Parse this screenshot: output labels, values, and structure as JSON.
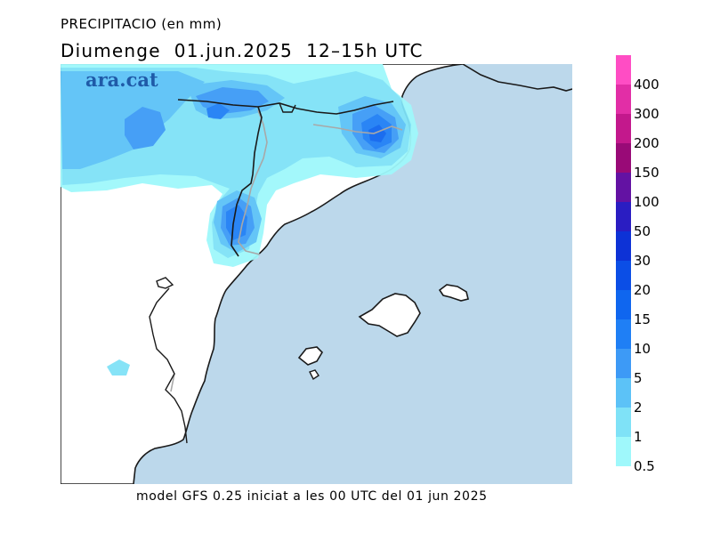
{
  "header": {
    "variable": "PRECIPITACIO (en mm)",
    "period": "Diumenge  01.jun.2025  12–15h UTC"
  },
  "brand": {
    "logo_text": "ara.cat"
  },
  "footer": {
    "model_info": "model GFS 0.25 iniciat a les 00 UTC del 01 jun 2025"
  },
  "colors": {
    "sea": "#bcd8eb",
    "land": "#ffffff",
    "coast": "#1a1a1a",
    "border": "#a8a8a8"
  },
  "legend": {
    "unit": "mm",
    "classes": [
      {
        "label": "400",
        "color": "#ff4dc4"
      },
      {
        "label": "300",
        "color": "#e22ea6"
      },
      {
        "label": "200",
        "color": "#c3188c"
      },
      {
        "label": "150",
        "color": "#990a77"
      },
      {
        "label": "100",
        "color": "#6312a3"
      },
      {
        "label": "50",
        "color": "#2a1dc2"
      },
      {
        "label": "30",
        "color": "#0d32d6"
      },
      {
        "label": "20",
        "color": "#0b4ee6"
      },
      {
        "label": "15",
        "color": "#0f66ef"
      },
      {
        "label": "10",
        "color": "#1f7ff5"
      },
      {
        "label": "5",
        "color": "#3d9af6"
      },
      {
        "label": "2",
        "color": "#5cc2f7"
      },
      {
        "label": "1",
        "color": "#7fe2f7"
      },
      {
        "label": "0.5",
        "color": "#9ff8fb"
      }
    ]
  }
}
